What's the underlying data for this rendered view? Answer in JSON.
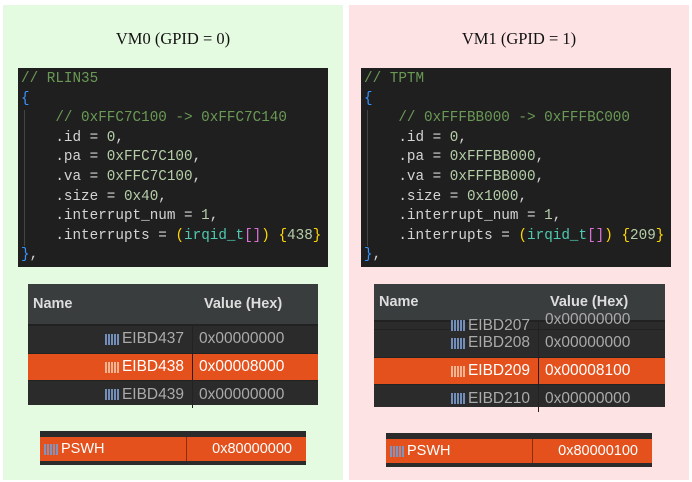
{
  "colors": {
    "vm0_bg": "#e5fbe1",
    "vm1_bg": "#fde3e3",
    "selected_row": "#e4511c",
    "code_bg": "#1f1f1f"
  },
  "vms": [
    {
      "title": "VM0 (GPID = 0)",
      "code": [
        [
          {
            "t": "// RLIN35",
            "c": "com"
          }
        ],
        [
          {
            "t": "{",
            "c": "brace"
          }
        ],
        [
          {
            "t": "    // 0xFFC7C100 -> 0xFFC7C140",
            "c": "com"
          }
        ],
        [
          {
            "t": "    .id = ",
            "c": "txt"
          },
          {
            "t": "0",
            "c": "num"
          },
          {
            "t": ",",
            "c": "txt"
          }
        ],
        [
          {
            "t": "    .pa = ",
            "c": "txt"
          },
          {
            "t": "0xFFC7C100",
            "c": "num"
          },
          {
            "t": ",",
            "c": "txt"
          }
        ],
        [
          {
            "t": "    .va = ",
            "c": "txt"
          },
          {
            "t": "0xFFC7C100",
            "c": "num"
          },
          {
            "t": ",",
            "c": "txt"
          }
        ],
        [
          {
            "t": "    .size = ",
            "c": "txt"
          },
          {
            "t": "0x40",
            "c": "num"
          },
          {
            "t": ",",
            "c": "txt"
          }
        ],
        [
          {
            "t": "    .interrupt_num = ",
            "c": "txt"
          },
          {
            "t": "1",
            "c": "num"
          },
          {
            "t": ",",
            "c": "txt"
          }
        ],
        [
          {
            "t": "    .interrupts = ",
            "c": "txt"
          },
          {
            "t": "(",
            "c": "par"
          },
          {
            "t": "irqid_t",
            "c": "type"
          },
          {
            "t": "[]",
            "c": "brk"
          },
          {
            "t": ")",
            "c": "par"
          },
          {
            "t": " ",
            "c": "txt"
          },
          {
            "t": "{",
            "c": "par"
          },
          {
            "t": "438",
            "c": "num"
          },
          {
            "t": "}",
            "c": "par"
          }
        ],
        [
          {
            "t": "}",
            "c": "brace"
          },
          {
            "t": ",",
            "c": "txt"
          }
        ]
      ],
      "table": {
        "headers": [
          "Name",
          "Value (Hex)"
        ],
        "partial_row": null,
        "rows": [
          {
            "name": "EIBD437",
            "value": "0x00000000",
            "selected": false
          },
          {
            "name": "EIBD438",
            "value": "0x00008000",
            "selected": true
          },
          {
            "name": "EIBD439",
            "value": "0x00000000",
            "selected": false
          }
        ]
      },
      "psw": {
        "name": "PSWH",
        "value": "0x80000000"
      }
    },
    {
      "title": "VM1 (GPID = 1)",
      "code": [
        [
          {
            "t": "// TPTM",
            "c": "com"
          }
        ],
        [
          {
            "t": "{",
            "c": "brace"
          }
        ],
        [
          {
            "t": "    // 0xFFFBB000 -> 0xFFFBC000",
            "c": "com"
          }
        ],
        [
          {
            "t": "    .id = ",
            "c": "txt"
          },
          {
            "t": "0",
            "c": "num"
          },
          {
            "t": ",",
            "c": "txt"
          }
        ],
        [
          {
            "t": "    .pa = ",
            "c": "txt"
          },
          {
            "t": "0xFFFBB000",
            "c": "num"
          },
          {
            "t": ",",
            "c": "txt"
          }
        ],
        [
          {
            "t": "    .va = ",
            "c": "txt"
          },
          {
            "t": "0xFFFBB000",
            "c": "num"
          },
          {
            "t": ",",
            "c": "txt"
          }
        ],
        [
          {
            "t": "    .size = ",
            "c": "txt"
          },
          {
            "t": "0x1000",
            "c": "num"
          },
          {
            "t": ",",
            "c": "txt"
          }
        ],
        [
          {
            "t": "    .interrupt_num = ",
            "c": "txt"
          },
          {
            "t": "1",
            "c": "num"
          },
          {
            "t": ",",
            "c": "txt"
          }
        ],
        [
          {
            "t": "    .interrupts = ",
            "c": "txt"
          },
          {
            "t": "(",
            "c": "par"
          },
          {
            "t": "irqid_t",
            "c": "type"
          },
          {
            "t": "[]",
            "c": "brk"
          },
          {
            "t": ")",
            "c": "par"
          },
          {
            "t": " ",
            "c": "txt"
          },
          {
            "t": "{",
            "c": "par"
          },
          {
            "t": "209",
            "c": "num"
          },
          {
            "t": "}",
            "c": "par"
          }
        ],
        [
          {
            "t": "}",
            "c": "brace"
          },
          {
            "t": ",",
            "c": "txt"
          }
        ]
      ],
      "table": {
        "headers": [
          "Name",
          "Value (Hex)"
        ],
        "partial_row": {
          "name": "EIBD207",
          "value": "0x00000000"
        },
        "rows": [
          {
            "name": "EIBD208",
            "value": "0x00000000",
            "selected": false
          },
          {
            "name": "EIBD209",
            "value": "0x00008100",
            "selected": true
          },
          {
            "name": "EIBD210",
            "value": "0x00000000",
            "selected": false
          }
        ]
      },
      "psw": {
        "name": "PSWH",
        "value": "0x80000100"
      }
    }
  ]
}
